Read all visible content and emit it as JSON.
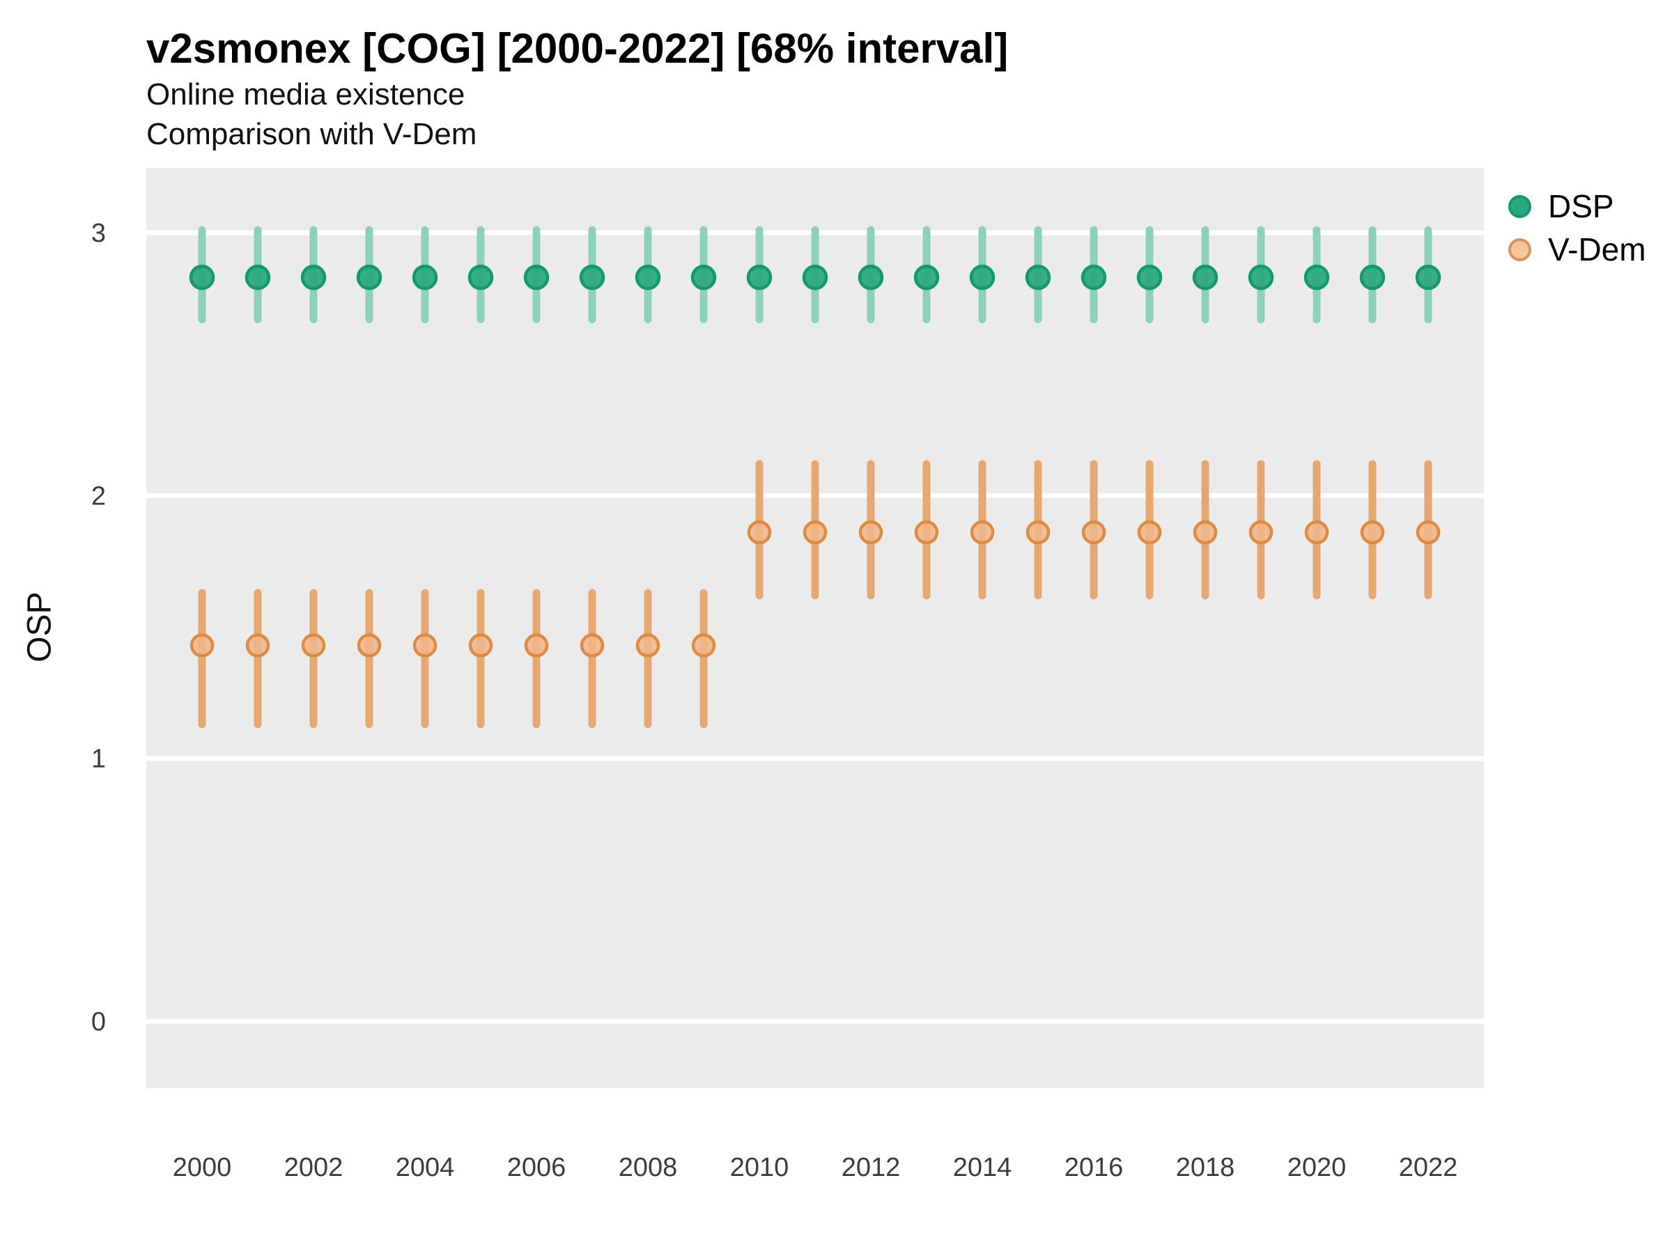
{
  "page": {
    "title": "v2smonex [COG] [2000-2022] [68% interval]",
    "subtitle1": "Online media existence",
    "subtitle2": "Comparison with V-Dem"
  },
  "chart_data": {
    "type": "scatter",
    "variant": "pointrange (point with 68% interval error bars)",
    "title": "v2smonex [COG] [2000-2022] [68% interval]",
    "subtitle": [
      "Online media existence",
      "Comparison with V-Dem"
    ],
    "xlabel": "",
    "ylabel": "OSP",
    "x": [
      2000,
      2001,
      2002,
      2003,
      2004,
      2005,
      2006,
      2007,
      2008,
      2009,
      2010,
      2011,
      2012,
      2013,
      2014,
      2015,
      2016,
      2017,
      2018,
      2019,
      2020,
      2021,
      2022
    ],
    "x_tick_labels": [
      "2000",
      "2002",
      "2004",
      "2006",
      "2008",
      "2010",
      "2012",
      "2014",
      "2016",
      "2018",
      "2020",
      "2022"
    ],
    "y_ticks": [
      0,
      1,
      2,
      3
    ],
    "ylim": [
      -0.25,
      3.25
    ],
    "xlim": [
      1999,
      2023
    ],
    "grid": "major horizontal white lines on grey panel",
    "legend_position": "right",
    "panel_bg": "#EBEBEB",
    "gridline_color": "#FFFFFF",
    "axis_text_color": "#3C3C3C",
    "series": [
      {
        "name": "DSP",
        "values": [
          2.83,
          2.83,
          2.83,
          2.83,
          2.83,
          2.83,
          2.83,
          2.83,
          2.83,
          2.83,
          2.83,
          2.83,
          2.83,
          2.83,
          2.83,
          2.83,
          2.83,
          2.83,
          2.83,
          2.83,
          2.83,
          2.83,
          2.83
        ],
        "ci_low": [
          2.67,
          2.67,
          2.67,
          2.67,
          2.67,
          2.67,
          2.67,
          2.67,
          2.67,
          2.67,
          2.67,
          2.67,
          2.67,
          2.67,
          2.67,
          2.67,
          2.67,
          2.67,
          2.67,
          2.67,
          2.67,
          2.67,
          2.67
        ],
        "ci_high": [
          3.01,
          3.01,
          3.01,
          3.01,
          3.01,
          3.01,
          3.01,
          3.01,
          3.01,
          3.01,
          3.01,
          3.01,
          3.01,
          3.01,
          3.01,
          3.01,
          3.01,
          3.01,
          3.01,
          3.01,
          3.01,
          3.01,
          3.01
        ],
        "style": {
          "bar_color": "#8FD1B6",
          "point_fill": "#2AA77E",
          "point_ring": "#12996C",
          "point_radius": 16,
          "fill_opacity": 0.92
        }
      },
      {
        "name": "V-Dem",
        "values": [
          1.43,
          1.43,
          1.43,
          1.43,
          1.43,
          1.43,
          1.43,
          1.43,
          1.43,
          1.43,
          1.86,
          1.86,
          1.86,
          1.86,
          1.86,
          1.86,
          1.86,
          1.86,
          1.86,
          1.86,
          1.86,
          1.86,
          1.86
        ],
        "ci_low": [
          1.13,
          1.13,
          1.13,
          1.13,
          1.13,
          1.13,
          1.13,
          1.13,
          1.13,
          1.13,
          1.62,
          1.62,
          1.62,
          1.62,
          1.62,
          1.62,
          1.62,
          1.62,
          1.62,
          1.62,
          1.62,
          1.62,
          1.62
        ],
        "ci_high": [
          1.63,
          1.63,
          1.63,
          1.63,
          1.63,
          1.63,
          1.63,
          1.63,
          1.63,
          1.63,
          2.12,
          2.12,
          2.12,
          2.12,
          2.12,
          2.12,
          2.12,
          2.12,
          2.12,
          2.12,
          2.12,
          2.12,
          2.12
        ],
        "style": {
          "bar_color": "#E5A871",
          "point_fill": "#F0B689",
          "point_ring": "#E08B44",
          "point_radius": 15,
          "fill_opacity": 0.85
        }
      }
    ],
    "legend": [
      {
        "label": "DSP",
        "marker_fill": "#2AA77E",
        "marker_ring": "#12996C"
      },
      {
        "label": "V-Dem",
        "marker_fill": "#F5C69B",
        "marker_ring": "#E39055"
      }
    ]
  }
}
